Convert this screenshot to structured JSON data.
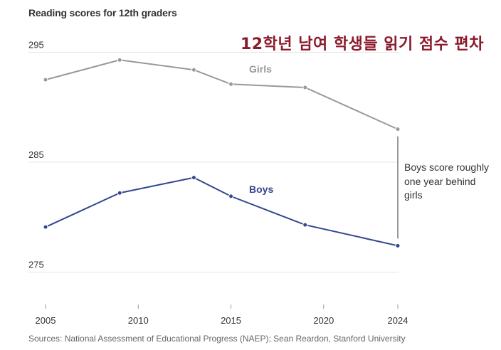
{
  "chart_data": {
    "type": "line",
    "title": "Reading scores for 12th graders",
    "overlay_title": "12학년 남여 학생들 읽기 점수 편차",
    "x": [
      2005,
      2009,
      2013,
      2015,
      2019,
      2024
    ],
    "xticks": [
      2005,
      2010,
      2015,
      2020,
      2024
    ],
    "yticks": [
      275,
      285,
      295
    ],
    "xlim": [
      2005,
      2024
    ],
    "ylim": [
      272,
      297
    ],
    "grid": "horizontal",
    "series": [
      {
        "name": "Girls",
        "color": "#999999",
        "values": [
          292.5,
          294.3,
          293.4,
          292.1,
          291.8,
          288.0
        ]
      },
      {
        "name": "Boys",
        "color": "#33478f",
        "values": [
          279.1,
          282.2,
          283.6,
          281.9,
          279.3,
          277.4
        ]
      }
    ],
    "annotation": "Boys score roughly one year behind girls",
    "source": "Sources: National Assessment of Educational Progress (NAEP); Sean Reardon, Stanford University"
  }
}
